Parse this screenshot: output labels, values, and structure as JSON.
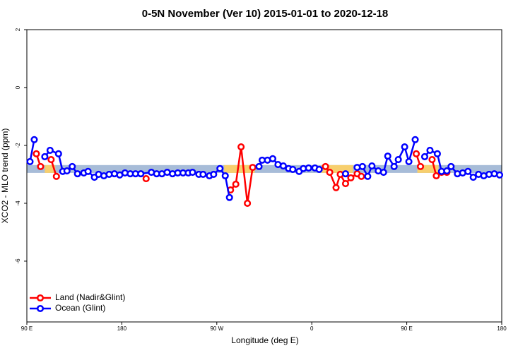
{
  "chart_data": {
    "type": "line",
    "title": "0-5N November (Ver 10)   2015-01-01 to 2020-12-18",
    "x_label": "Longitude (deg E)",
    "y_label": "XCO2 - MLO trend (ppm)",
    "xlim": [
      90,
      540
    ],
    "ylim": [
      -8.1,
      2
    ],
    "xticks": [
      {
        "value": 90,
        "label": "90 E"
      },
      180,
      {
        "value": 270,
        "label": "90 W"
      },
      {
        "value": 360,
        "label": "0"
      },
      {
        "value": 450,
        "label": "90 E"
      },
      {
        "value": 540,
        "label": "180"
      }
    ],
    "yticks": [
      2,
      0,
      -2,
      -4,
      -6
    ],
    "band_range": [
      -2.95,
      -2.68
    ],
    "band_color": "#a7bcd8",
    "land_ranges": [
      [
        107,
        117
      ],
      [
        277,
        306
      ],
      [
        369,
        399
      ],
      [
        460,
        480
      ]
    ],
    "land_color": "#f7cf6e",
    "legend": "bottom-left",
    "series": [
      {
        "name": "Land (Nadir&Glint)",
        "color": "#ff0000",
        "x": [
          99,
          103,
          null,
          113,
          118,
          null,
          203,
          null,
          283,
          288,
          293,
          299,
          304,
          null,
          373,
          377,
          383,
          387,
          392,
          397,
          403,
          407,
          null,
          459,
          463,
          null,
          474,
          478,
          483,
          488
        ],
        "values": [
          -2.29,
          -2.73,
          null,
          -2.49,
          -3.07,
          null,
          -3.15,
          null,
          -3.54,
          -3.34,
          -2.05,
          -4.0,
          -2.76,
          null,
          -2.73,
          -2.93,
          -3.46,
          -3.0,
          -3.32,
          -3.12,
          -2.98,
          -3.07,
          null,
          -2.29,
          -2.73,
          null,
          -2.49,
          -3.05,
          -2.93,
          -2.93
        ]
      },
      {
        "name": "Ocean (Glint)",
        "color": "#0000ff",
        "x": [
          93,
          97,
          null,
          107,
          112,
          120,
          124,
          128,
          133,
          138,
          144,
          148,
          154,
          158,
          163,
          168,
          173,
          178,
          183,
          188,
          193,
          198,
          208,
          213,
          218,
          223,
          228,
          233,
          238,
          243,
          247,
          253,
          257,
          263,
          267,
          273,
          278,
          282,
          null,
          310,
          313,
          318,
          323,
          328,
          333,
          338,
          342,
          348,
          352,
          357,
          363,
          367,
          null,
          392,
          null,
          403,
          408,
          413,
          417,
          423,
          428,
          432,
          438,
          442,
          448,
          452,
          458,
          null,
          467,
          472,
          479,
          483,
          488,
          492,
          498,
          503,
          508,
          513,
          518,
          523,
          528,
          533,
          538
        ],
        "values": [
          -2.56,
          -1.8,
          null,
          -2.39,
          -2.17,
          -2.29,
          -2.9,
          -2.88,
          -2.73,
          -2.98,
          -2.95,
          -2.9,
          -3.1,
          -3.0,
          -3.05,
          -3.0,
          -2.98,
          -3.02,
          -2.95,
          -2.98,
          -2.98,
          -2.98,
          -2.93,
          -2.98,
          -2.98,
          -2.93,
          -2.98,
          -2.95,
          -2.95,
          -2.95,
          -2.93,
          -3.0,
          -3.0,
          -3.05,
          -3.0,
          -2.8,
          -3.05,
          -3.8,
          null,
          -2.73,
          -2.51,
          -2.51,
          -2.46,
          -2.66,
          -2.71,
          -2.8,
          -2.83,
          -2.9,
          -2.8,
          -2.78,
          -2.78,
          -2.83,
          null,
          -2.98,
          null,
          -2.76,
          -2.73,
          -3.07,
          -2.71,
          -2.88,
          -2.93,
          -2.37,
          -2.73,
          -2.49,
          -2.05,
          -2.56,
          -1.8,
          null,
          -2.39,
          -2.17,
          -2.29,
          -2.9,
          -2.88,
          -2.73,
          -2.98,
          -2.95,
          -2.9,
          -3.1,
          -3.0,
          -3.05,
          -3.0,
          -2.98,
          -3.02
        ]
      }
    ]
  }
}
